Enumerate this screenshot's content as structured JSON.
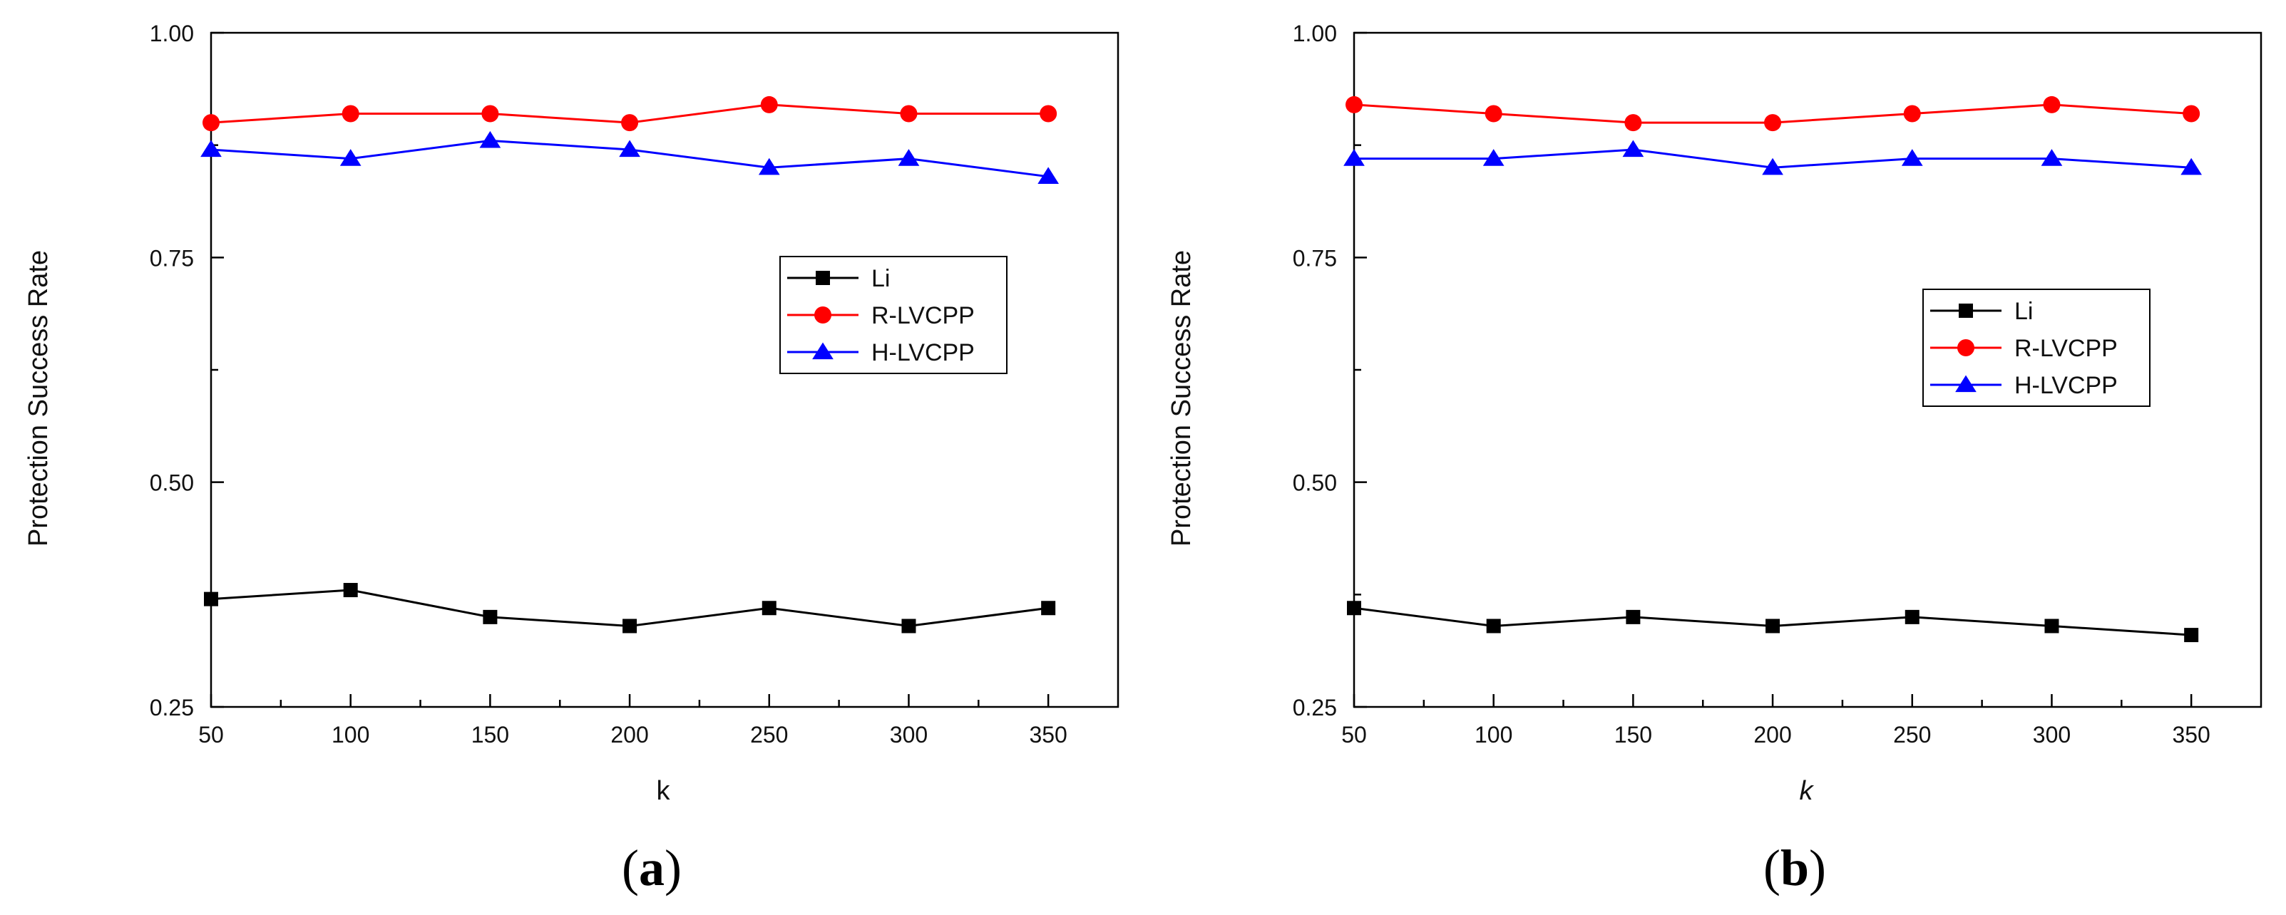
{
  "chart_data": [
    {
      "type": "line",
      "panel_label": "a",
      "title": "",
      "xlabel": "k",
      "ylabel": "Protection Success Rate",
      "x": [
        50,
        100,
        150,
        200,
        250,
        300,
        350
      ],
      "xlim": [
        50,
        375
      ],
      "ylim": [
        0.25,
        1.0
      ],
      "xticks": [
        "50",
        "100",
        "150",
        "200",
        "250",
        "300",
        "350"
      ],
      "yticks": [
        "0.25",
        "0.50",
        "0.75",
        "1.00"
      ],
      "ytick_values": [
        0.25,
        0.5,
        0.75,
        1.0
      ],
      "legend_position": "center-right",
      "series": [
        {
          "name": "Li",
          "color": "#000000",
          "marker": "square",
          "values": [
            0.37,
            0.38,
            0.35,
            0.34,
            0.36,
            0.34,
            0.36
          ]
        },
        {
          "name": "R-LVCPP",
          "color": "#ff0000",
          "marker": "circle",
          "values": [
            0.9,
            0.91,
            0.91,
            0.9,
            0.92,
            0.91,
            0.91
          ]
        },
        {
          "name": "H-LVCPP",
          "color": "#0000ff",
          "marker": "triangle",
          "values": [
            0.87,
            0.86,
            0.88,
            0.87,
            0.85,
            0.86,
            0.84
          ]
        }
      ]
    },
    {
      "type": "line",
      "panel_label": "b",
      "title": "",
      "xlabel": "k",
      "ylabel": "Protection Success Rate",
      "x": [
        50,
        100,
        150,
        200,
        250,
        300,
        350
      ],
      "xlim": [
        50,
        375
      ],
      "ylim": [
        0.25,
        1.0
      ],
      "xticks": [
        "50",
        "100",
        "150",
        "200",
        "250",
        "300",
        "350"
      ],
      "yticks": [
        "0.25",
        "0.50",
        "0.75",
        "1.00"
      ],
      "ytick_values": [
        0.25,
        0.5,
        0.75,
        1.0
      ],
      "legend_position": "center-right",
      "series": [
        {
          "name": "Li",
          "color": "#000000",
          "marker": "square",
          "values": [
            0.36,
            0.34,
            0.35,
            0.34,
            0.35,
            0.34,
            0.33
          ]
        },
        {
          "name": "R-LVCPP",
          "color": "#ff0000",
          "marker": "circle",
          "values": [
            0.92,
            0.91,
            0.9,
            0.9,
            0.91,
            0.92,
            0.91
          ]
        },
        {
          "name": "H-LVCPP",
          "color": "#0000ff",
          "marker": "triangle",
          "values": [
            0.86,
            0.86,
            0.87,
            0.85,
            0.86,
            0.86,
            0.85
          ]
        }
      ]
    }
  ]
}
